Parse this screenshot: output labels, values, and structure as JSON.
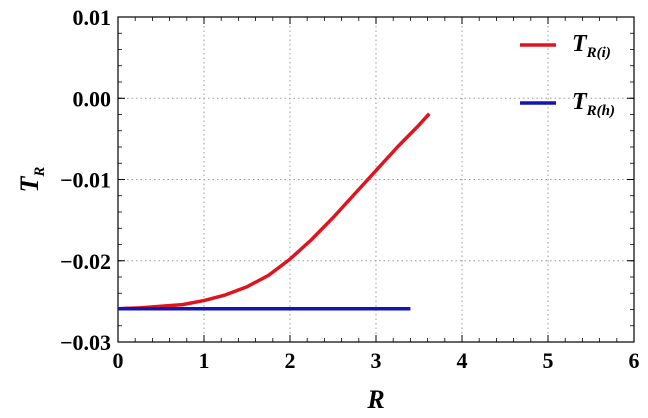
{
  "chart_data": {
    "type": "line",
    "xlabel": "R",
    "ylabel": "T_R",
    "xlim": [
      0,
      6
    ],
    "ylim": [
      -0.03,
      0.01
    ],
    "x_ticks": [
      0,
      1,
      2,
      3,
      4,
      5,
      6
    ],
    "x_tick_labels": [
      "0",
      "1",
      "2",
      "3",
      "4",
      "5",
      "6"
    ],
    "y_ticks": [
      0.01,
      0.0,
      -0.01,
      -0.02,
      -0.03
    ],
    "y_tick_labels": [
      "0.01",
      "0.00",
      "−0.01",
      "−0.02",
      "−0.03"
    ],
    "grid": true,
    "legend_position": "top-right",
    "series": [
      {
        "name": "T_R(i)",
        "color": "#e0141e",
        "x": [
          0,
          0.25,
          0.5,
          0.75,
          1.0,
          1.25,
          1.5,
          1.75,
          2.0,
          2.25,
          2.5,
          2.75,
          3.0,
          3.25,
          3.5,
          3.62
        ],
        "y": [
          -0.0259,
          -0.0258,
          -0.0256,
          -0.0254,
          -0.0249,
          -0.0242,
          -0.0232,
          -0.0218,
          -0.0198,
          -0.0174,
          -0.0147,
          -0.0118,
          -0.0089,
          -0.006,
          -0.0033,
          -0.0019
        ]
      },
      {
        "name": "T_R(h)",
        "color": "#1414b4",
        "x": [
          0,
          3.4
        ],
        "y": [
          -0.0259,
          -0.0259
        ]
      }
    ]
  },
  "legend": {
    "items": [
      {
        "main": "T",
        "sub": "R(i)"
      },
      {
        "main": "T",
        "sub": "R(h)"
      }
    ]
  },
  "axis": {
    "x_main": "R",
    "y_main": "T",
    "y_sub": "R"
  }
}
